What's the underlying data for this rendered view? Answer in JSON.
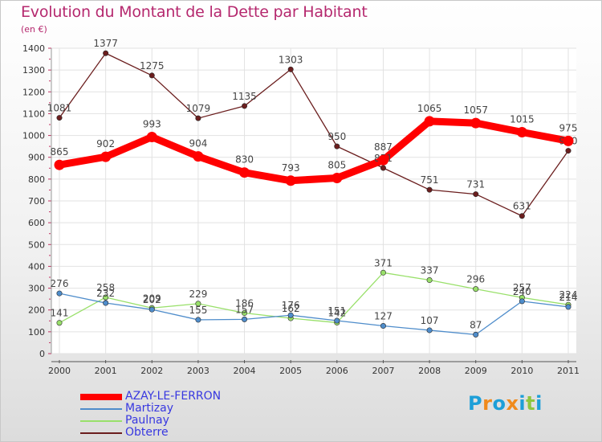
{
  "title": "Evolution du Montant de la Dette par Habitant",
  "unit": "(en €)",
  "chart_data": {
    "type": "line",
    "x": [
      "2000",
      "2001",
      "2002",
      "2003",
      "2004",
      "2005",
      "2006",
      "2007",
      "2008",
      "2009",
      "2010",
      "2011"
    ],
    "ylim": [
      0,
      1400
    ],
    "yticks": [
      0,
      100,
      200,
      300,
      400,
      500,
      600,
      700,
      800,
      900,
      1000,
      1100,
      1200,
      1300,
      1400
    ],
    "grid": true,
    "series": [
      {
        "name": "AZAY-LE-FERRON",
        "color": "#ff0000",
        "values": [
          865,
          902,
          993,
          904,
          830,
          793,
          805,
          887,
          1065,
          1057,
          1015,
          975
        ]
      },
      {
        "name": "Martizay",
        "color": "#4f8dcb",
        "values": [
          276,
          232,
          202,
          155,
          157,
          176,
          151,
          127,
          107,
          87,
          240,
          214
        ]
      },
      {
        "name": "Paulnay",
        "color": "#99e06a",
        "values": [
          141,
          258,
          209,
          229,
          186,
          162,
          142,
          371,
          337,
          296,
          257,
          224
        ]
      },
      {
        "name": "Obterre",
        "color": "#6b1e1e",
        "values": [
          1081,
          1377,
          1275,
          1079,
          1135,
          1303,
          950,
          851,
          751,
          731,
          631,
          930
        ]
      }
    ]
  },
  "logo": {
    "text": "Proxiti",
    "colors": [
      "#1d9fd8",
      "#f08a1c",
      "#1d9fd8",
      "#f08a1c",
      "#1d9fd8",
      "#8dc63f",
      "#1d9fd8"
    ]
  }
}
